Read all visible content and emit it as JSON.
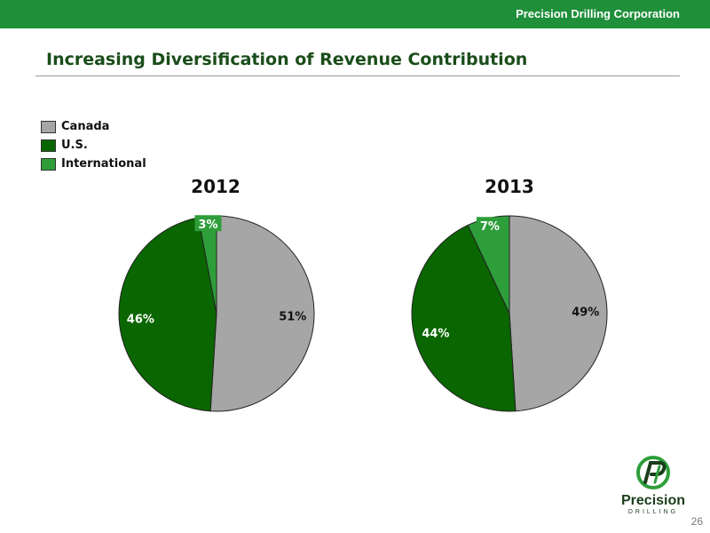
{
  "header": {
    "company": "Precision Drilling Corporation"
  },
  "title": "Increasing Diversification of Revenue Contribution",
  "page_number": "26",
  "logo": {
    "word": "Precision",
    "sub": "DRILLING",
    "mark": "pd-logo-icon"
  },
  "colors": {
    "canada": "#a6a6a6",
    "us": "#0a6600",
    "international": "#2e9e3a",
    "brand_bar": "#1f8f3a"
  },
  "chart_data": {
    "type": "pie",
    "legend": {
      "position": "top-left",
      "entries": [
        "Canada",
        "U.S.",
        "International"
      ]
    },
    "charts": [
      {
        "title": "2012",
        "slices": [
          {
            "label": "Canada",
            "value": 51,
            "display": "51%"
          },
          {
            "label": "U.S.",
            "value": 46,
            "display": "46%"
          },
          {
            "label": "International",
            "value": 3,
            "display": "3%"
          }
        ]
      },
      {
        "title": "2013",
        "slices": [
          {
            "label": "Canada",
            "value": 49,
            "display": "49%"
          },
          {
            "label": "U.S.",
            "value": 44,
            "display": "44%"
          },
          {
            "label": "International",
            "value": 7,
            "display": "7%"
          }
        ]
      }
    ]
  }
}
